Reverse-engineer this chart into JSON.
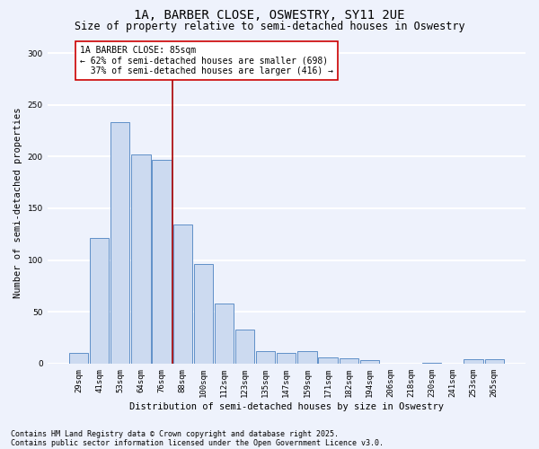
{
  "title_line1": "1A, BARBER CLOSE, OSWESTRY, SY11 2UE",
  "title_line2": "Size of property relative to semi-detached houses in Oswestry",
  "xlabel": "Distribution of semi-detached houses by size in Oswestry",
  "ylabel": "Number of semi-detached properties",
  "categories": [
    "29sqm",
    "41sqm",
    "53sqm",
    "64sqm",
    "76sqm",
    "88sqm",
    "100sqm",
    "112sqm",
    "123sqm",
    "135sqm",
    "147sqm",
    "159sqm",
    "171sqm",
    "182sqm",
    "194sqm",
    "206sqm",
    "218sqm",
    "230sqm",
    "241sqm",
    "253sqm",
    "265sqm"
  ],
  "values": [
    10,
    121,
    233,
    202,
    197,
    134,
    96,
    58,
    33,
    12,
    10,
    12,
    6,
    5,
    3,
    0,
    0,
    1,
    0,
    4,
    4
  ],
  "bar_color": "#ccdaf0",
  "bar_edge_color": "#6090c8",
  "marker_label": "1A BARBER CLOSE: 85sqm",
  "smaller_pct": 62,
  "smaller_count": 698,
  "larger_pct": 37,
  "larger_count": 416,
  "annotation_box_color": "#ffffff",
  "annotation_box_edge": "#cc0000",
  "marker_line_color": "#aa0000",
  "ylim": [
    0,
    310
  ],
  "yticks": [
    0,
    50,
    100,
    150,
    200,
    250,
    300
  ],
  "background_color": "#eef2fc",
  "grid_color": "#ffffff",
  "footer_line1": "Contains HM Land Registry data © Crown copyright and database right 2025.",
  "footer_line2": "Contains public sector information licensed under the Open Government Licence v3.0.",
  "title_fontsize": 10,
  "subtitle_fontsize": 8.5,
  "axis_label_fontsize": 7.5,
  "tick_fontsize": 6.5,
  "annotation_fontsize": 7,
  "footer_fontsize": 6
}
